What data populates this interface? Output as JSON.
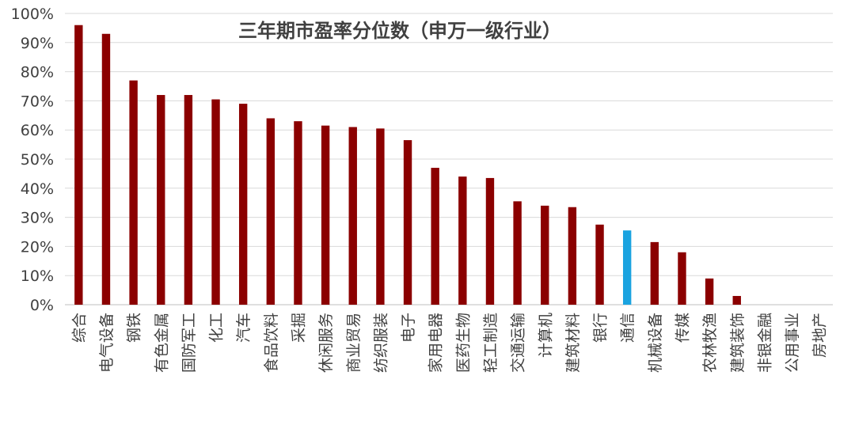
{
  "chart_data": {
    "type": "bar",
    "title": "三年期市盈率分位数（申万一级行业）",
    "xlabel": "",
    "ylabel": "",
    "ylim": [
      0,
      100
    ],
    "yticks": [
      "0%",
      "10%",
      "20%",
      "30%",
      "40%",
      "50%",
      "60%",
      "70%",
      "80%",
      "90%",
      "100%"
    ],
    "grid": true,
    "legend": "none",
    "categories": [
      "综合",
      "电气设备",
      "钢铁",
      "有色金属",
      "国防军工",
      "化工",
      "汽车",
      "食品饮料",
      "采掘",
      "休闲服务",
      "商业贸易",
      "纺织服装",
      "电子",
      "家用电器",
      "医药生物",
      "轻工制造",
      "交通运输",
      "计算机",
      "建筑材料",
      "银行",
      "通信",
      "机械设备",
      "传媒",
      "农林牧渔",
      "建筑装饰",
      "非银金融",
      "公用事业",
      "房地产"
    ],
    "values": [
      96,
      93,
      77,
      72,
      72,
      70.5,
      69,
      64,
      63,
      61.5,
      61,
      60.5,
      56.5,
      47,
      44,
      43.5,
      35.5,
      34,
      33.5,
      27.5,
      25.5,
      21.5,
      18,
      9,
      3,
      0,
      0,
      0
    ],
    "highlight_category": "通信",
    "colors": {
      "bar": "#8b0000",
      "highlight": "#1aa3e0"
    }
  }
}
